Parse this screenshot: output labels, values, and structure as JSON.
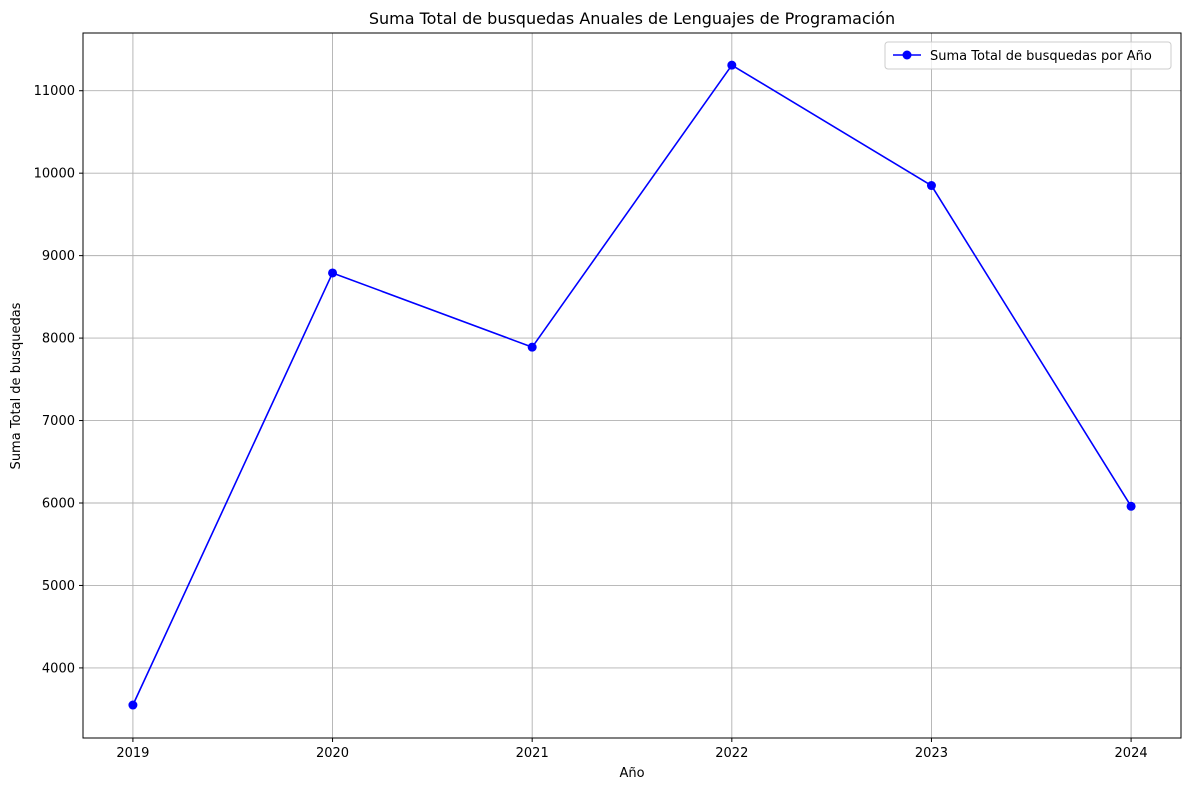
{
  "chart_data": {
    "type": "line",
    "title": "Suma Total de busquedas Anuales de Lenguajes de Programación",
    "xlabel": "Año",
    "ylabel": "Suma Total de busquedas",
    "x": [
      2019,
      2020,
      2021,
      2022,
      2023,
      2024
    ],
    "series": [
      {
        "name": "Suma Total de busquedas por Año",
        "values": [
          3550,
          8790,
          7890,
          11310,
          9850,
          5960
        ],
        "color": "#0000ff",
        "marker": "circle"
      }
    ],
    "xlim": [
      2018.75,
      2024.25
    ],
    "ylim": [
      3150,
      11700
    ],
    "yticks": [
      4000,
      5000,
      6000,
      7000,
      8000,
      9000,
      10000,
      11000
    ],
    "xticks": [
      2019,
      2020,
      2021,
      2022,
      2023,
      2024
    ],
    "grid": true,
    "legend_position": "top-right"
  }
}
